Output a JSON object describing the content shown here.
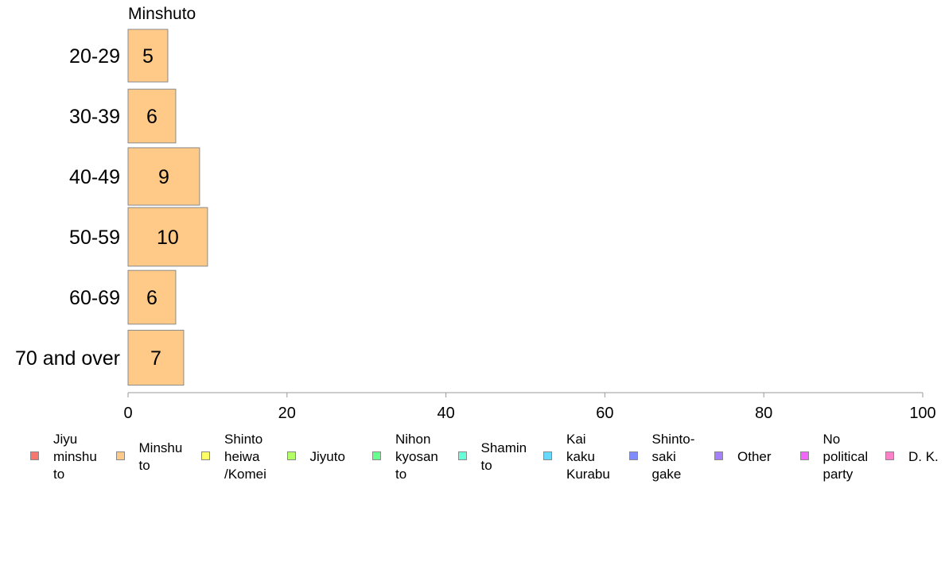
{
  "chart_data": {
    "type": "bar",
    "orientation": "horizontal",
    "title": "Minshuto",
    "categories": [
      "20-29",
      "30-39",
      "40-49",
      "50-59",
      "60-69",
      "70 and over"
    ],
    "values": [
      5,
      6,
      9,
      10,
      6,
      7
    ],
    "value_labels": [
      "5",
      "6",
      "9",
      "10",
      "6",
      "7"
    ],
    "bar_color": "#FFC987",
    "bar_edge_color": "#8a8a8a",
    "xlim": [
      0,
      100
    ],
    "xticks": [
      0,
      20,
      40,
      60,
      80,
      100
    ],
    "xtick_labels": [
      "0",
      "20",
      "40",
      "60",
      "80",
      "100"
    ],
    "grid": false,
    "legend_position": "bottom",
    "legend": [
      {
        "label": "Jiyu\nminshu\nto",
        "color": "#F8766D"
      },
      {
        "label": "Minshu\nto",
        "color": "#FFC987"
      },
      {
        "label": "Shinto\nheiwa\n/Komei",
        "color": "#FFFF66"
      },
      {
        "label": "Jiyuto",
        "color": "#B2FF66"
      },
      {
        "label": "Nihon\nkyosan\nto",
        "color": "#66FF8C"
      },
      {
        "label": "Shamin\nto",
        "color": "#66FFD9"
      },
      {
        "label": "Kai\nkaku\nKurabu",
        "color": "#66D9FF"
      },
      {
        "label": "Shinto-\nsaki\ngake",
        "color": "#7F8CFF"
      },
      {
        "label": "Other",
        "color": "#A680FF"
      },
      {
        "label": "No\npolitical\nparty",
        "color": "#F266FF"
      },
      {
        "label": "D. K.",
        "color": "#FF80C8"
      }
    ]
  }
}
